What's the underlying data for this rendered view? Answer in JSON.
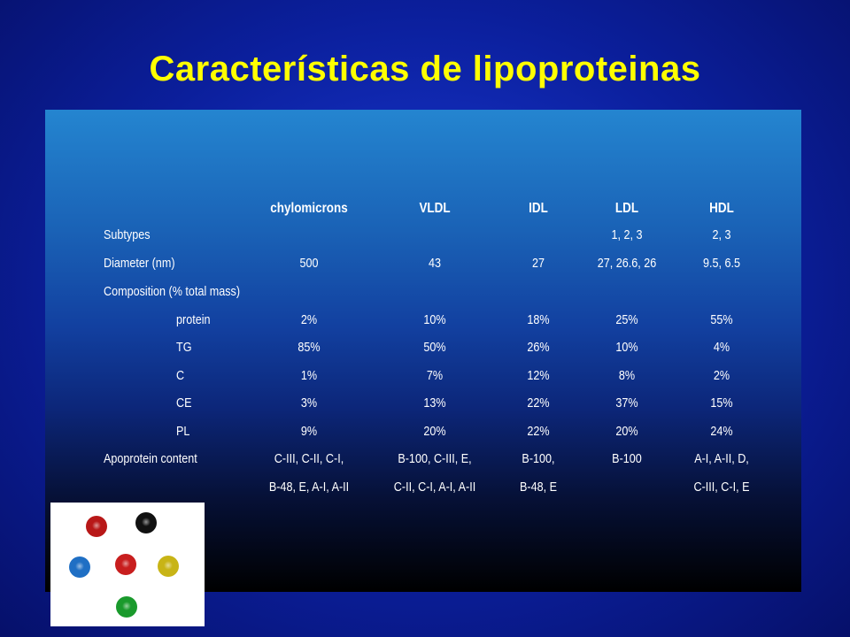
{
  "slide": {
    "title": "Características de lipoproteinas"
  },
  "table": {
    "columns": [
      "chylomicrons",
      "VLDL",
      "IDL",
      "LDL",
      "HDL"
    ],
    "rows": [
      {
        "label": "Subtypes",
        "values": [
          "",
          "",
          "",
          "1, 2, 3",
          "2, 3"
        ]
      },
      {
        "label": "Diameter (nm)",
        "values": [
          "500",
          "43",
          "27",
          "27, 26.6, 26",
          "9.5, 6.5"
        ]
      },
      {
        "label": "Composition (% total mass)",
        "values": [
          "",
          "",
          "",
          "",
          ""
        ]
      },
      {
        "label": "protein",
        "values": [
          "2%",
          "10%",
          "18%",
          "25%",
          "55%"
        ]
      },
      {
        "label": "TG",
        "values": [
          "85%",
          "50%",
          "26%",
          "10%",
          "4%"
        ]
      },
      {
        "label": "C",
        "values": [
          "1%",
          "7%",
          "12%",
          "8%",
          "2%"
        ]
      },
      {
        "label": "CE",
        "values": [
          "3%",
          "13%",
          "22%",
          "37%",
          "15%"
        ]
      },
      {
        "label": "PL",
        "values": [
          "9%",
          "20%",
          "22%",
          "20%",
          "24%"
        ]
      },
      {
        "label": "Apoprotein content",
        "values": [
          "C-III, C-II, C-I,",
          "B-100, C-III, E,",
          "B-100,",
          "B-100",
          "A-I, A-II, D,"
        ]
      },
      {
        "label": "",
        "values": [
          "B-48, E, A-I, A-II",
          "C-II, C-I, A-I, A-II",
          "B-48, E",
          "",
          "C-III, C-I, E"
        ]
      }
    ]
  },
  "molecules": [
    {
      "color": "#b81818",
      "name": "red-molecule-top"
    },
    {
      "color": "#111111",
      "name": "black-molecule"
    },
    {
      "color": "#1f6fc4",
      "name": "blue-molecule"
    },
    {
      "color": "#c81e1e",
      "name": "red-molecule-center"
    },
    {
      "color": "#c8b416",
      "name": "yellow-molecule"
    },
    {
      "color": "#1a9a2c",
      "name": "green-molecule"
    }
  ]
}
